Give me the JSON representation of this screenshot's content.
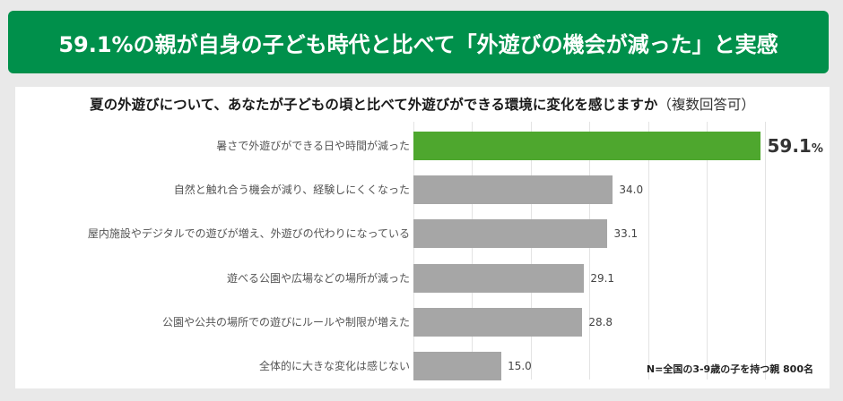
{
  "banner": {
    "title": "59.1%の親が自身の子ども時代と比べて「外遊びの機会が減った」と実感"
  },
  "chart_data": {
    "type": "bar",
    "orientation": "horizontal",
    "title": "夏の外遊びについて、あなたが子どもの頃と比べて外遊びができる環境に変化を感じますか",
    "subtitle": "（複数回答可）",
    "categories": [
      "暑さで外遊びができる日や時間が減った",
      "自然と触れ合う機会が減り、経験しにくくなった",
      "屋内施設やデジタルでの遊びが増え、外遊びの代わりになっている",
      "遊べる公園や広場などの場所が減った",
      "公園や公共の場所での遊びにルールや制限が増えた",
      "全体的に大きな変化は感じない"
    ],
    "values": [
      59.1,
      34.0,
      33.1,
      29.1,
      28.8,
      15.0
    ],
    "value_labels": [
      "59.1",
      "34.0",
      "33.1",
      "29.1",
      "28.8",
      "15.0"
    ],
    "unit": "%",
    "xlim": [
      0,
      60
    ],
    "grid": true,
    "grid_step": 10,
    "colors": {
      "highlight": "#4ea72e",
      "default": "#a6a6a6"
    },
    "xlabel": "",
    "ylabel": "",
    "note": "N=全国の3-9歳の子を持つ親 800名"
  },
  "colors": {
    "banner": "#00904b",
    "background": "#e9e9e9",
    "panel": "#ffffff"
  }
}
